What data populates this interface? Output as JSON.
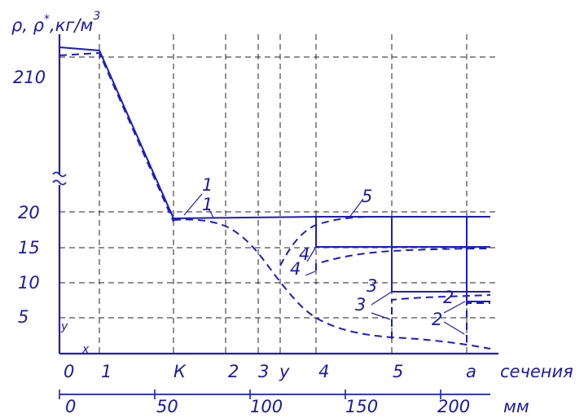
{
  "axes": {
    "y_title_rho": "ρ, ρ",
    "y_title_star": "*",
    "y_title_units": ",кг/м",
    "y_title_exp": "3",
    "y_ticks": [
      "210",
      "20",
      "15",
      "10",
      "5"
    ],
    "sections_label": "сечения",
    "sections": [
      "0",
      "1",
      "К",
      "2",
      "3",
      "у",
      "4",
      "5",
      "а"
    ],
    "mm_label": "мм",
    "mm_ticks": [
      "0",
      "50",
      "100",
      "150",
      "200"
    ],
    "break_symbol": "≈",
    "corner_x": "x",
    "corner_y": "y"
  },
  "curve_labels": [
    "1",
    "1",
    "5",
    "4",
    "4",
    "3",
    "3",
    "2",
    "2"
  ],
  "colors": {
    "ink": "#1c1cc8",
    "grid": "#222222"
  }
}
